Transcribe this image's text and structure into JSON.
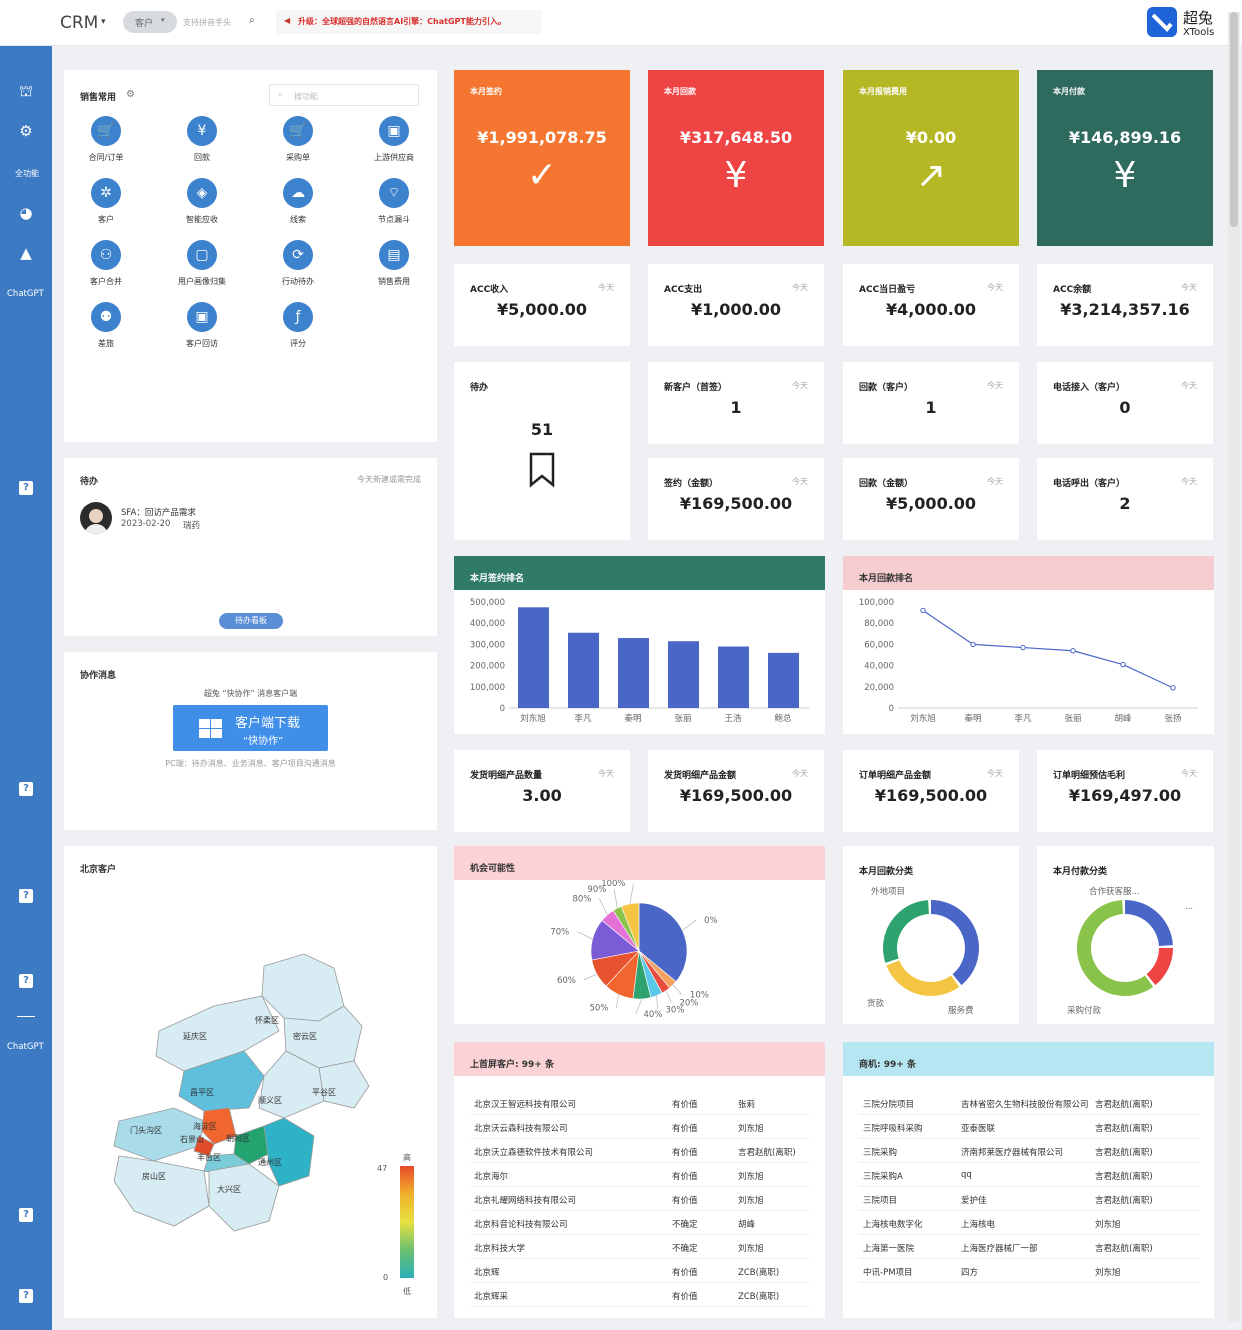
{
  "topbar": {
    "app_title": "CRM",
    "module_select": "客户",
    "search_placeholder": "支持拼音手头",
    "notice": "升级：全球超强的自然语言AI引擎：ChatGPT能力引入。",
    "brand_cn": "超兔",
    "brand_en": "XTools"
  },
  "sidebar": {
    "icons": [
      "sitemap-icon",
      "gears-icon",
      "full-feature-icon",
      "dashboard-icon",
      "chart-area-icon"
    ],
    "full_label": "全功能",
    "chatgpt1": "ChatGPT",
    "chatgpt2": "ChatGPT",
    "help": "?"
  },
  "quick": {
    "title": "销售常用",
    "search_placeholder": "搜功能",
    "items": [
      {
        "label": "合同/订单",
        "icon": "cart-icon",
        "glyph": "🛒"
      },
      {
        "label": "回款",
        "icon": "yen-icon",
        "glyph": "¥"
      },
      {
        "label": "采购单",
        "icon": "purchase-cart-icon",
        "glyph": "🛒"
      },
      {
        "label": "上游供应商",
        "icon": "supplier-icon",
        "glyph": "▣"
      },
      {
        "label": "客户",
        "icon": "customers-icon",
        "glyph": "✲"
      },
      {
        "label": "智能应收",
        "icon": "receivable-icon",
        "glyph": "◈"
      },
      {
        "label": "线索",
        "icon": "lead-icon",
        "glyph": "☁"
      },
      {
        "label": "节点漏斗",
        "icon": "funnel-icon",
        "glyph": "⌔"
      },
      {
        "label": "客户合并",
        "icon": "merge-icon",
        "glyph": "⚇"
      },
      {
        "label": "用户画像归集",
        "icon": "profile-icon",
        "glyph": "▢"
      },
      {
        "label": "行动待办",
        "icon": "todo-icon",
        "glyph": "⟳"
      },
      {
        "label": "销售费用",
        "icon": "expense-icon",
        "glyph": "▤"
      },
      {
        "label": "差旅",
        "icon": "travel-icon",
        "glyph": "⚉"
      },
      {
        "label": "客户回访",
        "icon": "revisit-icon",
        "glyph": "▣"
      },
      {
        "label": "评分",
        "icon": "score-icon",
        "glyph": "ƒ"
      }
    ]
  },
  "todo": {
    "title": "待办",
    "hint": "今天新建或需完成",
    "item_title": "SFA：回访产品需求",
    "item_date": "2023-02-20",
    "item_user": "瑞药",
    "button": "待办看板"
  },
  "collab": {
    "title": "协作消息",
    "line": "超兔 “快协作” 消息客户端",
    "btn_main": "客户端下载",
    "btn_sub": "“快协作”",
    "pc_note": "PC端：待办消息、业务消息、客户项目沟通消息"
  },
  "map": {
    "title": "北京客户",
    "districts": [
      "怀柔区",
      "延庆区",
      "密云区",
      "平谷区",
      "昌平区",
      "顺义区",
      "门头沟区",
      "海淀区",
      "石景山",
      "朝阳区",
      "丰台区",
      "通州区",
      "房山区",
      "大兴区"
    ],
    "legend_high": "高",
    "legend_low": "低",
    "legend_max": "47",
    "legend_min": "0"
  },
  "kpi_big": [
    {
      "label": "本月签约",
      "amount": "¥1,991,078.75",
      "glyph": "✓",
      "color": "#f47630",
      "icon": "check-icon"
    },
    {
      "label": "本月回款",
      "amount": "¥317,648.50",
      "glyph": "¥",
      "color": "#ef4444",
      "icon": "yen-icon"
    },
    {
      "label": "本月报销费用",
      "amount": "¥0.00",
      "glyph": "↗",
      "color": "#b5b725",
      "icon": "arrow-icon"
    },
    {
      "label": "本月付款",
      "amount": "¥146,899.16",
      "glyph": "¥",
      "color": "#2f6a5e",
      "icon": "yen-icon"
    }
  ],
  "today": "今天",
  "kpi_row1": [
    {
      "label": "ACC收入",
      "value": "¥5,000.00"
    },
    {
      "label": "ACC支出",
      "value": "¥1,000.00"
    },
    {
      "label": "ACC当日盈亏",
      "value": "¥4,000.00"
    },
    {
      "label": "ACC余额",
      "value": "¥3,214,357.16"
    }
  ],
  "pending": {
    "label": "待办",
    "value": "51"
  },
  "kpi_row2": [
    {
      "label": "新客户（首签）",
      "value": "1"
    },
    {
      "label": "回款（客户）",
      "value": "1"
    },
    {
      "label": "电话接入（客户）",
      "value": "0"
    }
  ],
  "kpi_row3": [
    {
      "label": "签约（金额）",
      "value": "¥169,500.00"
    },
    {
      "label": "回款（金额）",
      "value": "¥5,000.00"
    },
    {
      "label": "电话呼出（客户）",
      "value": "2"
    }
  ],
  "kpi_row4": [
    {
      "label": "发货明细产品数量",
      "value": "3.00"
    },
    {
      "label": "发货明细产品金额",
      "value": "¥169,500.00"
    },
    {
      "label": "订单明细产品金额",
      "value": "¥169,500.00"
    },
    {
      "label": "订单明细预估毛利",
      "value": "¥169,497.00"
    }
  ],
  "chart_data": [
    {
      "type": "bar",
      "title": "本月签约排名",
      "categories": [
        "刘东旭",
        "李凡",
        "秦明",
        "张丽",
        "王浩",
        "鲍总"
      ],
      "values": [
        475000,
        355000,
        330000,
        315000,
        290000,
        260000
      ],
      "ylim": [
        0,
        500000
      ],
      "yticks": [
        "500,000",
        "400,000",
        "300,000",
        "200,000",
        "100,000",
        "0"
      ],
      "color": "#4a66c7"
    },
    {
      "type": "line",
      "title": "本月回款排名",
      "categories": [
        "刘东旭",
        "秦明",
        "李凡",
        "张丽",
        "胡峰",
        "张扬"
      ],
      "values": [
        92000,
        60000,
        57000,
        54000,
        41000,
        19000
      ],
      "ylim": [
        0,
        100000
      ],
      "yticks": [
        "100,000",
        "80,000",
        "60,000",
        "40,000",
        "20,000",
        "0"
      ],
      "color": "#4a66c7"
    },
    {
      "type": "pie",
      "title": "机会可能性",
      "labels": [
        "0%",
        "10%",
        "20%",
        "30%",
        "40%",
        "50%",
        "60%",
        "70%",
        "80%",
        "90%",
        "100%"
      ],
      "values": [
        36,
        3,
        3,
        4,
        6,
        10,
        10,
        14,
        5,
        3,
        6
      ]
    },
    {
      "type": "pie",
      "title": "本月回款分类",
      "labels": [
        "外地项目",
        "货款",
        "服务费"
      ],
      "values": [
        40,
        30,
        30
      ]
    },
    {
      "type": "pie",
      "title": "本月付款分类",
      "labels": [
        "合作获客服...",
        "...",
        "采购付款"
      ],
      "values": [
        25,
        15,
        60
      ]
    }
  ],
  "customers": {
    "title": "上首屏客户:",
    "count": "99+ 条",
    "rows": [
      [
        "北京汉王智远科技有限公司",
        "有价值",
        "张莉"
      ],
      [
        "北京沃云森科技有限公司",
        "有价值",
        "刘东旭"
      ],
      [
        "北京沃立森德软件技术有限公司",
        "有价值",
        "言君赵航(离职)"
      ],
      [
        "北京海尔",
        "有价值",
        "刘东旭"
      ],
      [
        "北京礼耀网络科技有限公司",
        "有价值",
        "刘东旭"
      ],
      [
        "北京科音论科技有限公司",
        "不确定",
        "胡峰"
      ],
      [
        "北京科技大学",
        "不确定",
        "刘东旭"
      ],
      [
        "北京辉",
        "有价值",
        "ZCB(离职)"
      ],
      [
        "北京辉采",
        "有价值",
        "ZCB(离职)"
      ]
    ]
  },
  "opps": {
    "title": "商机:",
    "count": "99+ 条",
    "rows": [
      [
        "三院分院项目",
        "吉林省密久生物科技股份有限公司",
        "言君赵航(离职)"
      ],
      [
        "三院呼吸科采购",
        "亚泰医联",
        "言君赵航(离职)"
      ],
      [
        "三院采购",
        "济南邦莱医疗器械有限公司",
        "言君赵航(离职)"
      ],
      [
        "三院采购A",
        "qq",
        "言君赵航(离职)"
      ],
      [
        "三院项目",
        "爱护佳",
        "言君赵航(离职)"
      ],
      [
        "上海核电数字化",
        "上海核电",
        "刘东旭"
      ],
      [
        "上海第一医院",
        "上海医疗器械厂一部",
        "言君赵航(离职)"
      ],
      [
        "中讯-PM项目",
        "四方",
        "刘东旭"
      ]
    ]
  }
}
